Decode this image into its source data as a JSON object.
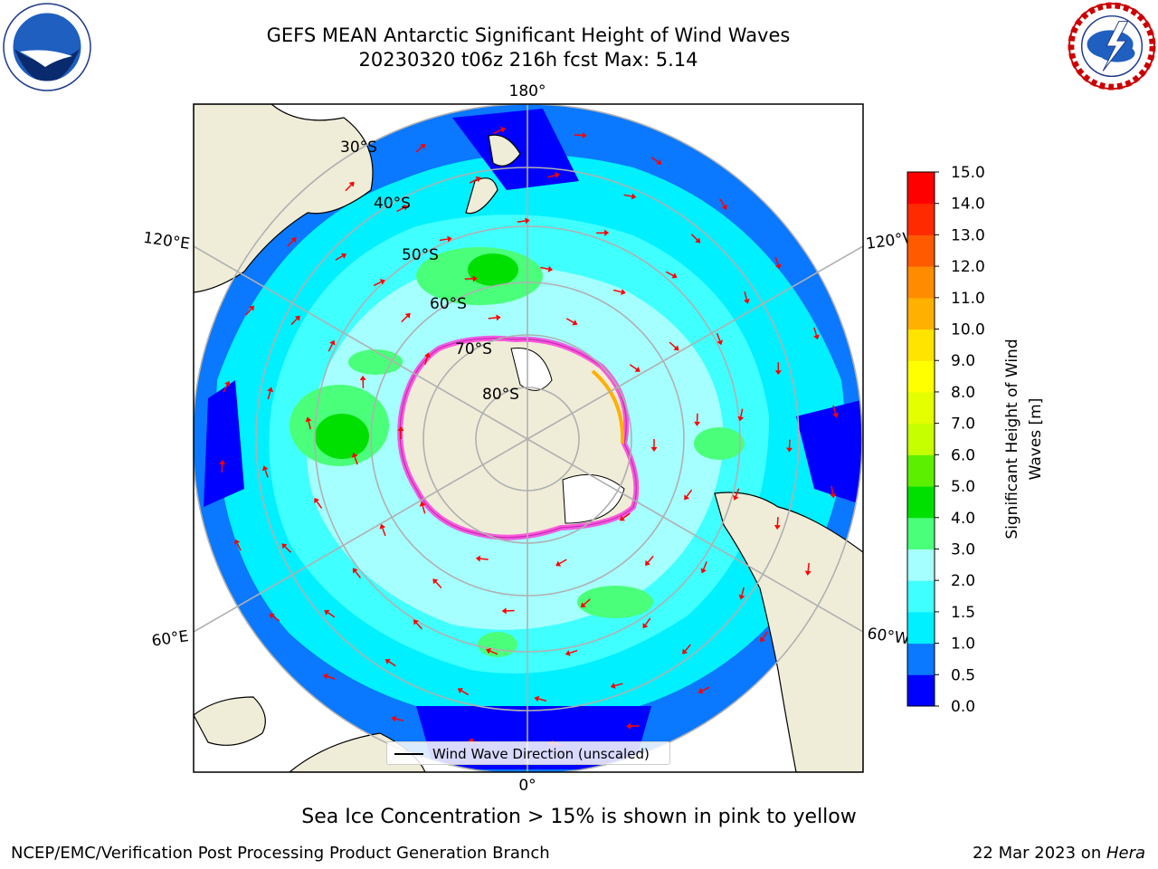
{
  "title": {
    "line1": "GEFS MEAN Antarctic Significant Height of Wind Waves",
    "line2": "20230320 t06z 216h fcst   Max: 5.14"
  },
  "map": {
    "projection": "south-polar-stereographic",
    "lon_labels": [
      {
        "text": "180°",
        "lon": 180
      },
      {
        "text": "120°E",
        "lon": 120
      },
      {
        "text": "120°W",
        "lon": -120
      },
      {
        "text": "60°E",
        "lon": 60
      },
      {
        "text": "60°W",
        "lon": -60
      },
      {
        "text": "0°",
        "lon": 0
      }
    ],
    "lat_labels": [
      "30°S",
      "40°S",
      "50°S",
      "60°S",
      "70°S",
      "80°S"
    ],
    "colors": {
      "land": "#efedd8",
      "ice_shelf": "#ffffff",
      "sea_ice": "#ff33dd",
      "grid": "#b0b0b0",
      "arrow": "#ff0000"
    }
  },
  "legend": {
    "label": "Wind Wave Direction (unscaled)"
  },
  "colorbar": {
    "label_line1": "Significant Height of Wind",
    "label_line2": "Waves [m]",
    "ticks": [
      "0.0",
      "0.5",
      "1.0",
      "1.5",
      "2.0",
      "3.0",
      "4.0",
      "5.0",
      "6.0",
      "7.0",
      "8.0",
      "9.0",
      "10.0",
      "11.0",
      "12.0",
      "13.0",
      "14.0",
      "15.0"
    ],
    "colors": [
      "#0000ff",
      "#0a78ff",
      "#00f0ff",
      "#40ffff",
      "#a6ffff",
      "#4aff7a",
      "#00e000",
      "#5cf000",
      "#c6ff00",
      "#e4ff00",
      "#ffff00",
      "#ffe400",
      "#ffb000",
      "#ff8c00",
      "#ff5a00",
      "#ff2a00",
      "#ff0000"
    ]
  },
  "ice_note": "Sea Ice Concentration > 15% is shown in pink to yellow",
  "footer": {
    "left": "NCEP/EMC/Verification Post Processing Product Generation Branch",
    "right_date": "22 Mar 2023 on ",
    "right_host": "Hera"
  }
}
